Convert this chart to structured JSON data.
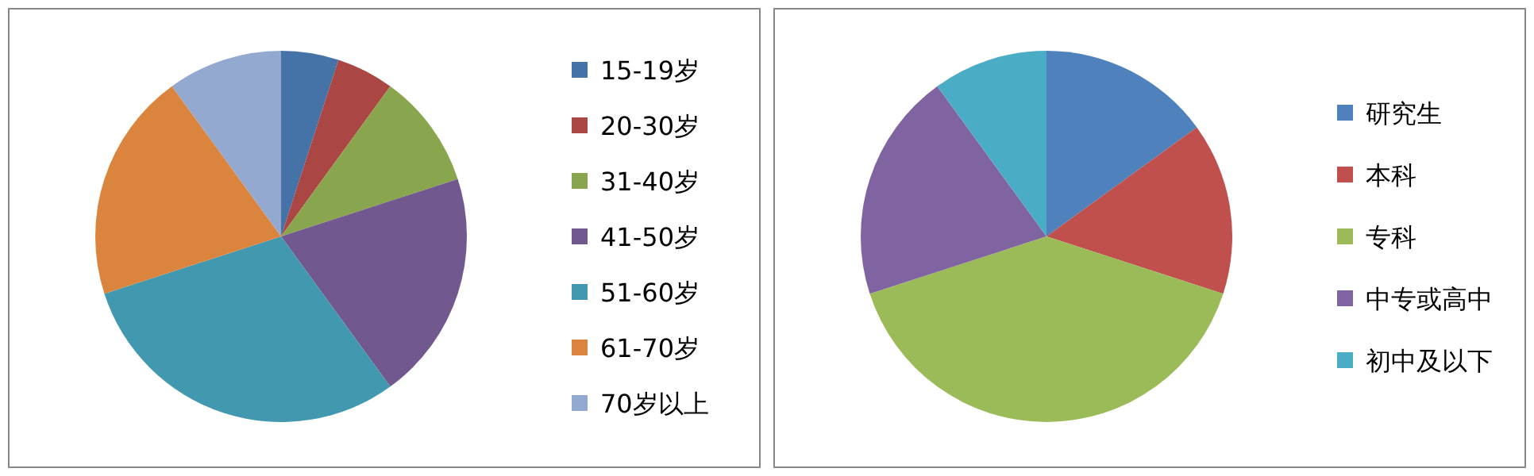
{
  "chart_data": [
    {
      "type": "pie",
      "categories": [
        "15-19岁",
        "20-30岁",
        "31-40岁",
        "41-50岁",
        "51-60岁",
        "61-70岁",
        "70岁以上"
      ],
      "values": [
        5,
        5,
        10,
        20,
        30,
        20,
        10
      ],
      "colors": [
        "#4572a7",
        "#aa4643",
        "#89a54e",
        "#71588f",
        "#4198af",
        "#db843d",
        "#93a9cf"
      ],
      "legend": "right"
    },
    {
      "type": "pie",
      "categories": [
        "研究生",
        "本科",
        "专科",
        "中专或高中",
        "初中及以下"
      ],
      "values": [
        15,
        15,
        40,
        20,
        10
      ],
      "colors": [
        "#4f81bd",
        "#c0504d",
        "#9bbb59",
        "#8064a2",
        "#4bacc6"
      ],
      "legend": "right"
    }
  ]
}
